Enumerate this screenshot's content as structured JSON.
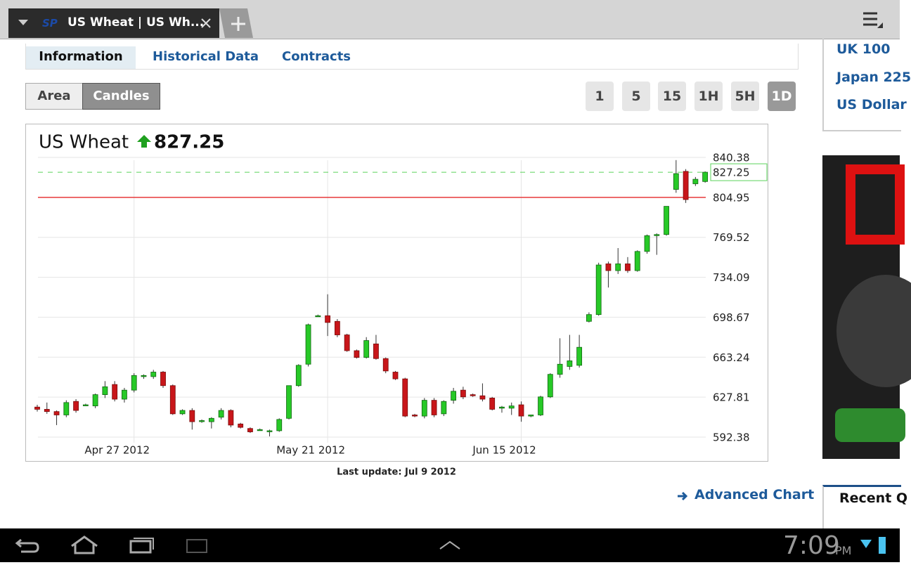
{
  "browser": {
    "tab_title": "US Wheat | US Wh..."
  },
  "page_tabs": [
    "Information",
    "Historical Data",
    "Contracts"
  ],
  "chart_modes": [
    "Area",
    "Candles"
  ],
  "intervals": [
    "1",
    "5",
    "15",
    "1H",
    "5H",
    "1D"
  ],
  "chart_data": {
    "type": "candlestick",
    "title": "US Wheat",
    "last_price": 827.25,
    "categories": [
      null,
      null,
      null,
      null,
      null,
      null,
      null,
      null,
      null,
      null,
      "Apr 27 2012",
      null,
      null,
      null,
      null,
      null,
      null,
      null,
      null,
      null,
      null,
      null,
      null,
      null,
      null,
      null,
      null,
      null,
      null,
      null,
      "May 21 2012",
      null,
      null,
      null,
      null,
      null,
      null,
      null,
      null,
      null,
      null,
      null,
      null,
      null,
      null,
      null,
      null,
      null,
      null,
      null,
      "Jun 15 2012",
      null,
      null,
      null,
      null,
      null,
      null,
      null,
      null,
      null,
      null,
      null,
      null,
      null,
      null,
      null,
      null,
      null,
      null,
      null
    ],
    "open": [
      619,
      617,
      615,
      612,
      624,
      621,
      620,
      630,
      639,
      626,
      634,
      646,
      646,
      650,
      638,
      613,
      616,
      607,
      606,
      610,
      616,
      604,
      600,
      599,
      598,
      598,
      609,
      638,
      657,
      700,
      700,
      695,
      683,
      669,
      663,
      675,
      662,
      650,
      644,
      612,
      611,
      625,
      613,
      625,
      634,
      630,
      629,
      627,
      618,
      618,
      621,
      611,
      612,
      628,
      648,
      655,
      656,
      695,
      701,
      746,
      740,
      746,
      740,
      757,
      771,
      772,
      812,
      828,
      817,
      819
    ],
    "high": [
      621,
      623,
      616,
      625,
      626,
      622,
      631,
      642,
      642,
      636,
      649,
      648,
      652,
      651,
      639,
      617,
      618,
      608,
      610,
      618,
      617,
      605,
      601,
      600,
      599,
      609,
      638,
      657,
      693,
      701,
      719,
      697,
      684,
      670,
      681,
      683,
      663,
      651,
      645,
      613,
      627,
      627,
      625,
      636,
      637,
      631,
      640,
      628,
      620,
      623,
      624,
      612,
      629,
      649,
      680,
      683,
      683,
      703,
      747,
      748,
      760,
      752,
      758,
      772,
      773,
      797,
      838,
      830,
      823,
      828
    ],
    "low": [
      615,
      613,
      603,
      610,
      614,
      620,
      618,
      627,
      624,
      623,
      632,
      644,
      644,
      636,
      612,
      612,
      599,
      605,
      600,
      608,
      601,
      600,
      596,
      598,
      593,
      597,
      608,
      637,
      655,
      699,
      682,
      681,
      668,
      662,
      662,
      661,
      649,
      643,
      610,
      610,
      609,
      610,
      611,
      622,
      626,
      628,
      624,
      616,
      614,
      612,
      606,
      610,
      611,
      627,
      645,
      652,
      654,
      694,
      700,
      725,
      737,
      738,
      739,
      755,
      754,
      771,
      809,
      800,
      815,
      818
    ],
    "close": [
      617,
      615,
      612,
      623,
      616,
      621,
      630,
      637,
      626,
      634,
      647,
      647,
      650,
      638,
      613,
      616,
      606,
      607,
      609,
      616,
      603,
      601,
      597,
      599,
      598,
      608,
      638,
      656,
      692,
      700,
      694,
      683,
      669,
      663,
      678,
      662,
      651,
      644,
      611,
      611,
      625,
      612,
      624,
      633,
      628,
      629,
      626,
      617,
      619,
      620,
      611,
      612,
      628,
      648,
      657,
      660,
      672,
      701,
      745,
      740,
      746,
      740,
      757,
      771,
      772,
      797,
      826,
      803,
      821,
      827.25
    ],
    "up_color": "#27c927",
    "down_color": "#c8161a",
    "ylim": [
      585,
      842
    ],
    "yticks": [
      592.38,
      627.81,
      663.24,
      698.67,
      734.09,
      769.52,
      804.95,
      840.38
    ],
    "reference_lines": [
      {
        "value": 804.95,
        "color": "#e8393a",
        "style": "solid"
      },
      {
        "value": 827.25,
        "color": "#5ad35a",
        "style": "dashed"
      }
    ],
    "grid": true,
    "footnote": "Last update: Jul 9 2012"
  },
  "advanced_link": "Advanced Chart",
  "sidebar": {
    "links": [
      "UK 100",
      "Japan 225",
      "US Dollar"
    ],
    "recent_heading": "Recent Q"
  },
  "status_bar": {
    "time": "7:09",
    "ampm": "PM"
  }
}
